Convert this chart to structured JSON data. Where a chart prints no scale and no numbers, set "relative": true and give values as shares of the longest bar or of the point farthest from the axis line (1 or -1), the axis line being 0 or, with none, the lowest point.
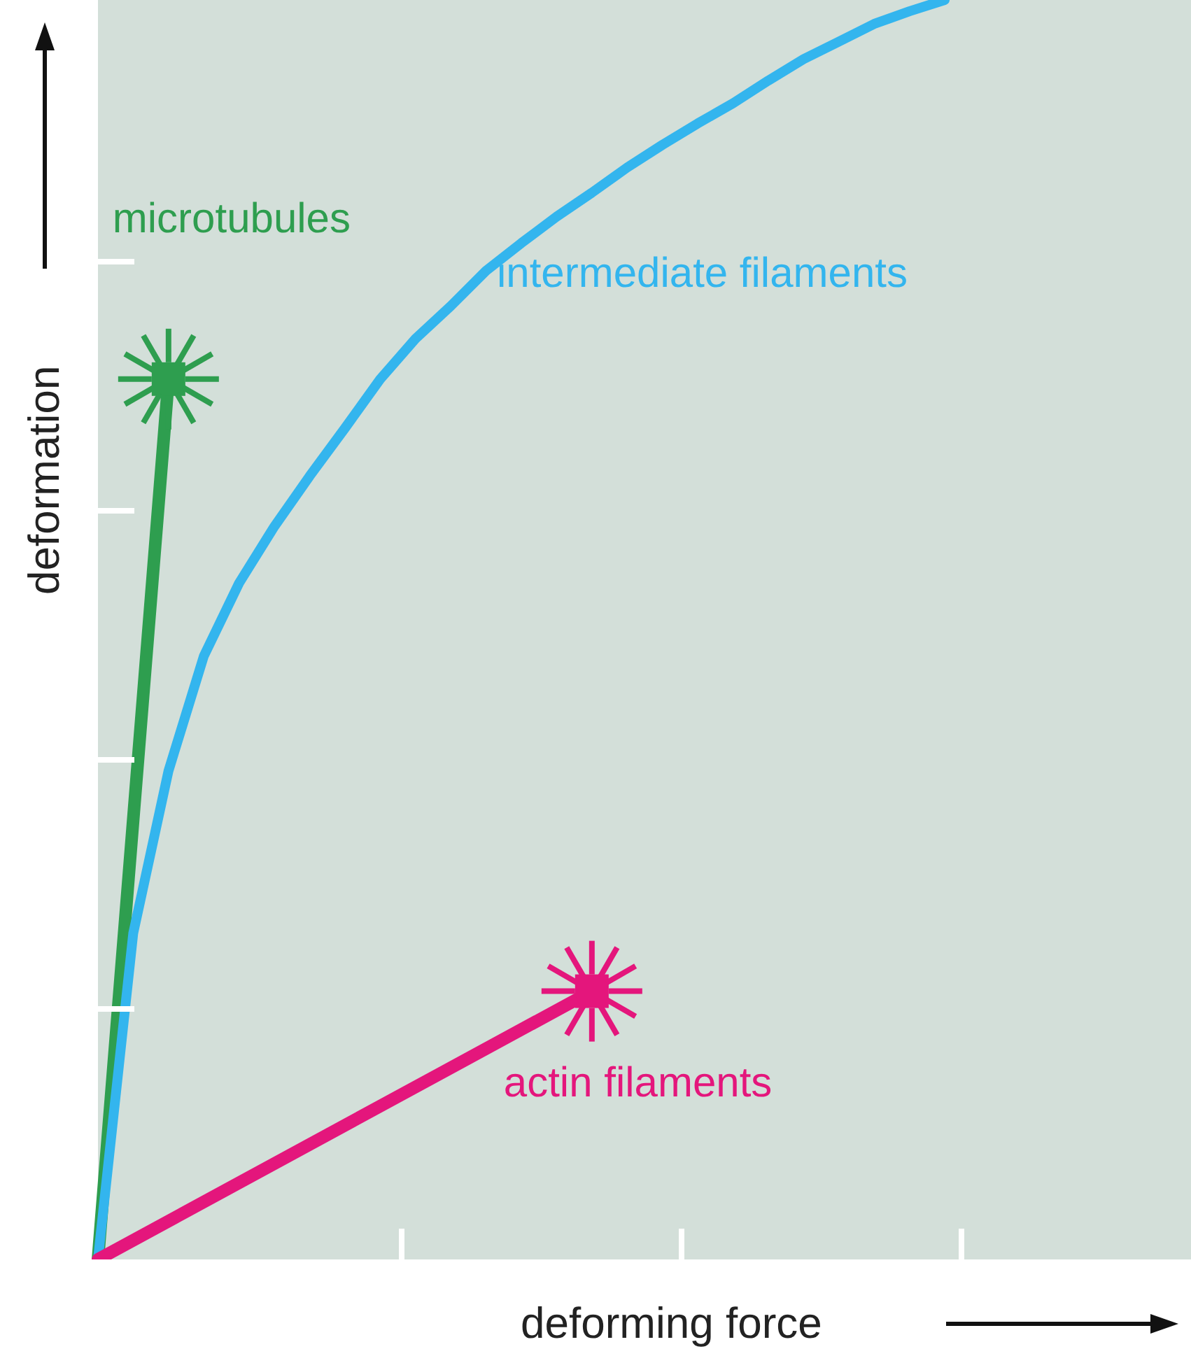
{
  "chart_data": {
    "type": "line",
    "xlabel": "deforming force",
    "ylabel": "deformation",
    "relative": true,
    "line_style": "solid",
    "categories": [
      null,
      null,
      null,
      null,
      null,
      null,
      null,
      null,
      null,
      null,
      null,
      null,
      null,
      null,
      null,
      null,
      null,
      null,
      null,
      null,
      null,
      null,
      null,
      null,
      null
    ],
    "series": [
      {
        "name": "microtubules",
        "color": "#2e9e4f",
        "values": [
          0,
          null,
          0.699,
          null,
          null,
          null,
          null,
          null,
          null,
          null,
          null,
          null,
          null,
          null,
          null,
          null,
          null,
          null,
          null,
          null,
          null,
          null,
          null,
          null,
          null
        ]
      },
      {
        "name": "intermediate filaments",
        "color": "#33b5ee",
        "values": [
          0,
          0.259,
          0.388,
          0.479,
          0.537,
          0.582,
          0.622,
          0.66,
          0.699,
          0.731,
          0.757,
          0.785,
          0.807,
          0.828,
          0.847,
          0.867,
          0.885,
          0.902,
          0.918,
          0.936,
          0.953,
          0.967,
          0.981,
          0.991,
          1
        ]
      },
      {
        "name": "actin filaments",
        "color": "#e4167c",
        "values": [
          0,
          null,
          null,
          null,
          null,
          null,
          null,
          null,
          null,
          null,
          null,
          null,
          null,
          null,
          0.213,
          null,
          null,
          null,
          null,
          null,
          null,
          null,
          null,
          null,
          null
        ]
      }
    ]
  }
}
